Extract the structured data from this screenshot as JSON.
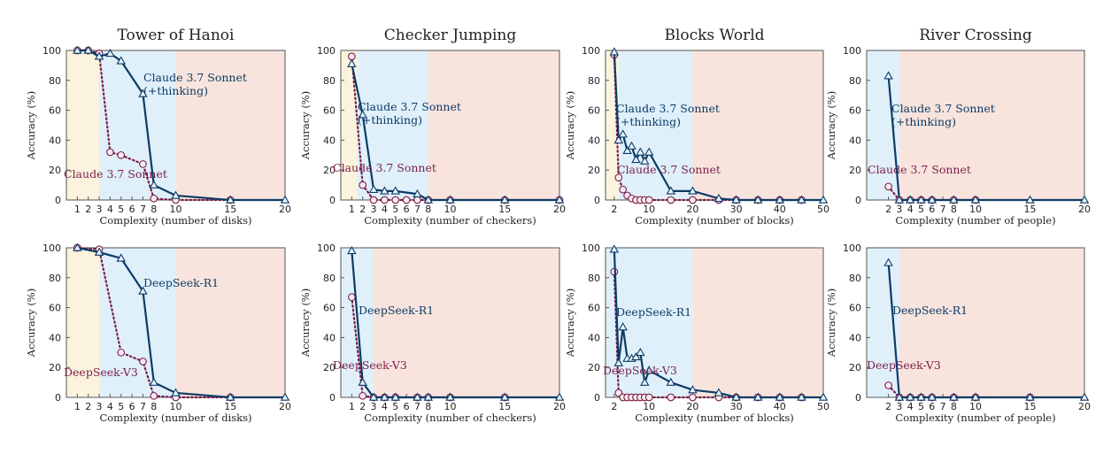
{
  "colors": {
    "thinking": "#0d3b66",
    "nothinking": "#7b1e4b",
    "marker_fill_thinking": "#e6f4fb",
    "marker_fill_nothinking": "#fbecef",
    "zone_low": "#fbf3dd",
    "zone_mid": "#dff0fb",
    "zone_high": "#f8e4dd"
  },
  "chart_data": [
    {
      "type": "line",
      "column": "Tower of Hanoi",
      "row": "top",
      "title": "Tower of Hanoi",
      "xlabel": "Complexity (number of disks)",
      "ylabel": "Accuracy (%)",
      "xlim": [
        0,
        20
      ],
      "ylim": [
        0,
        100
      ],
      "xticks": [
        1,
        2,
        3,
        4,
        5,
        6,
        7,
        8,
        10,
        15,
        20
      ],
      "yticks": [
        0,
        20,
        40,
        60,
        80,
        100
      ],
      "zones": [
        [
          0,
          3
        ],
        [
          3,
          10
        ],
        [
          10,
          20
        ]
      ],
      "series": [
        {
          "name": "Claude 3.7 Sonnet\n(+thinking)",
          "style": "thinking",
          "x": [
            1,
            2,
            3,
            4,
            5,
            7,
            8,
            10,
            15,
            20
          ],
          "y": [
            100,
            100,
            96,
            98,
            93,
            71,
            10,
            3,
            0,
            0
          ]
        },
        {
          "name": "Claude 3.7 Sonnet",
          "style": "nothinking",
          "x": [
            1,
            2,
            3,
            4,
            5,
            7,
            8,
            10,
            15
          ],
          "y": [
            100,
            100,
            98,
            32,
            30,
            24,
            1,
            0,
            0
          ]
        }
      ]
    },
    {
      "type": "line",
      "column": "Checker Jumping",
      "row": "top",
      "title": "Checker Jumping",
      "xlabel": "Complexity (number of checkers)",
      "ylabel": "Accuracy (%)",
      "xlim": [
        0,
        20
      ],
      "ylim": [
        0,
        100
      ],
      "xticks": [
        1,
        2,
        3,
        4,
        5,
        6,
        7,
        8,
        10,
        15,
        20
      ],
      "yticks": [
        0,
        20,
        40,
        60,
        80,
        100
      ],
      "zones": [
        [
          0,
          1.5
        ],
        [
          1.5,
          8
        ],
        [
          8,
          20
        ]
      ],
      "series": [
        {
          "name": "Claude 3.7 Sonnet\n(+thinking)",
          "style": "thinking",
          "x": [
            1,
            2,
            3,
            4,
            5,
            7,
            8,
            10,
            15,
            20
          ],
          "y": [
            91,
            57,
            7,
            6,
            6,
            4,
            0,
            0,
            0,
            0
          ]
        },
        {
          "name": "Claude 3.7 Sonnet",
          "style": "nothinking",
          "x": [
            1,
            2,
            3,
            4,
            5,
            6,
            7,
            8,
            10,
            15,
            20
          ],
          "y": [
            96,
            10,
            0,
            0,
            0,
            0,
            0,
            0,
            0,
            0,
            0
          ]
        }
      ]
    },
    {
      "type": "line",
      "column": "Blocks World",
      "row": "top",
      "title": "Blocks World",
      "xlabel": "Complexity (number of blocks)",
      "ylabel": "Accuracy (%)",
      "xlim": [
        0,
        50
      ],
      "ylim": [
        0,
        100
      ],
      "xticks": [
        2,
        10,
        20,
        30,
        40,
        50
      ],
      "yticks": [
        0,
        20,
        40,
        60,
        80,
        100
      ],
      "zones": [
        [
          0,
          3
        ],
        [
          3,
          20
        ],
        [
          20,
          50
        ]
      ],
      "series": [
        {
          "name": "Claude 3.7 Sonnet\n(+thinking)",
          "style": "thinking",
          "x": [
            2,
            3,
            4,
            5,
            6,
            7,
            8,
            9,
            10,
            15,
            20,
            26,
            30,
            35,
            40,
            45,
            50
          ],
          "y": [
            99,
            40,
            44,
            33,
            36,
            27,
            32,
            26,
            32,
            6,
            6,
            1,
            0,
            0,
            0,
            0,
            0
          ]
        },
        {
          "name": "Claude 3.7 Sonnet",
          "style": "nothinking",
          "x": [
            2,
            3,
            4,
            5,
            6,
            7,
            8,
            9,
            10,
            15,
            20,
            26,
            30,
            35,
            40,
            45
          ],
          "y": [
            97,
            15,
            7,
            3,
            1,
            0,
            0,
            0,
            0,
            0,
            0,
            0,
            0,
            0,
            0,
            0
          ]
        }
      ]
    },
    {
      "type": "line",
      "column": "River Crossing",
      "row": "top",
      "title": "River Crossing",
      "xlabel": "Complexity (number of people)",
      "ylabel": "Accuracy (%)",
      "xlim": [
        0,
        20
      ],
      "ylim": [
        0,
        100
      ],
      "xticks": [
        2,
        3,
        4,
        5,
        6,
        7,
        8,
        10,
        15,
        20
      ],
      "yticks": [
        0,
        20,
        40,
        60,
        80,
        100
      ],
      "zones": [
        [
          0,
          3
        ],
        [
          3,
          20
        ]
      ],
      "series": [
        {
          "name": "Claude 3.7 Sonnet\n(+thinking)",
          "style": "thinking",
          "x": [
            2,
            3,
            4,
            5,
            6,
            8,
            10,
            15,
            20
          ],
          "y": [
            83,
            0,
            0,
            0,
            0,
            0,
            0,
            0,
            0
          ]
        },
        {
          "name": "Claude 3.7 Sonnet",
          "style": "nothinking",
          "x": [
            2,
            3,
            4,
            5,
            6,
            8,
            10
          ],
          "y": [
            9,
            0,
            0,
            0,
            0,
            0,
            0
          ]
        }
      ]
    },
    {
      "type": "line",
      "column": "Tower of Hanoi",
      "row": "bottom",
      "title": "",
      "xlabel": "Complexity (number of disks)",
      "ylabel": "Accuracy (%)",
      "xlim": [
        0,
        20
      ],
      "ylim": [
        0,
        100
      ],
      "xticks": [
        1,
        2,
        3,
        4,
        5,
        6,
        7,
        8,
        10,
        15,
        20
      ],
      "yticks": [
        0,
        20,
        40,
        60,
        80,
        100
      ],
      "zones": [
        [
          0,
          3
        ],
        [
          3,
          10
        ],
        [
          10,
          20
        ]
      ],
      "series": [
        {
          "name": "DeepSeek-R1",
          "style": "thinking",
          "x": [
            1,
            3,
            5,
            7,
            8,
            10,
            15,
            20
          ],
          "y": [
            100,
            97,
            93,
            71,
            10,
            3,
            0,
            0
          ]
        },
        {
          "name": "DeepSeek-V3",
          "style": "nothinking",
          "x": [
            1,
            3,
            5,
            7,
            8,
            10,
            15
          ],
          "y": [
            100,
            99,
            30,
            24,
            1,
            0,
            0
          ]
        }
      ]
    },
    {
      "type": "line",
      "column": "Checker Jumping",
      "row": "bottom",
      "title": "",
      "xlabel": "Complexity (number of checkers)",
      "ylabel": "Accuracy (%)",
      "xlim": [
        0,
        20
      ],
      "ylim": [
        0,
        100
      ],
      "xticks": [
        1,
        2,
        3,
        4,
        5,
        6,
        7,
        8,
        10,
        15,
        20
      ],
      "yticks": [
        0,
        20,
        40,
        60,
        80,
        100
      ],
      "zones": [
        [
          0,
          3
        ],
        [
          3,
          20
        ]
      ],
      "series": [
        {
          "name": "DeepSeek-R1",
          "style": "thinking",
          "x": [
            1,
            2,
            3,
            4,
            5,
            7,
            8,
            10,
            15,
            20
          ],
          "y": [
            98,
            10,
            0,
            0,
            0,
            0,
            0,
            0,
            0,
            0
          ]
        },
        {
          "name": "DeepSeek-V3",
          "style": "nothinking",
          "x": [
            1,
            2,
            3,
            4,
            5,
            7,
            8,
            10,
            15
          ],
          "y": [
            67,
            1,
            0,
            0,
            0,
            0,
            0,
            0,
            0
          ]
        }
      ]
    },
    {
      "type": "line",
      "column": "Blocks World",
      "row": "bottom",
      "title": "",
      "xlabel": "Complexity (number of blocks)",
      "ylabel": "Accuracy (%)",
      "xlim": [
        0,
        50
      ],
      "ylim": [
        0,
        100
      ],
      "xticks": [
        2,
        10,
        20,
        30,
        40,
        50
      ],
      "yticks": [
        0,
        20,
        40,
        60,
        80,
        100
      ],
      "zones": [
        [
          0,
          20
        ],
        [
          20,
          50
        ]
      ],
      "series": [
        {
          "name": "DeepSeek-R1",
          "style": "thinking",
          "x": [
            2,
            3,
            4,
            5,
            6,
            7,
            8,
            9,
            10,
            15,
            20,
            26,
            30,
            35,
            40,
            45,
            50
          ],
          "y": [
            99,
            23,
            47,
            26,
            26,
            27,
            30,
            10,
            18,
            10,
            5,
            3,
            0,
            0,
            0,
            0,
            0
          ]
        },
        {
          "name": "DeepSeek-V3",
          "style": "nothinking",
          "x": [
            2,
            3,
            4,
            5,
            6,
            7,
            8,
            9,
            10,
            15,
            20,
            26,
            30,
            35,
            40,
            45
          ],
          "y": [
            84,
            3,
            0,
            0,
            0,
            0,
            0,
            0,
            0,
            0,
            0,
            0,
            0,
            0,
            0,
            0
          ]
        }
      ]
    },
    {
      "type": "line",
      "column": "River Crossing",
      "row": "bottom",
      "title": "",
      "xlabel": "Complexity (number of people)",
      "ylabel": "Accuracy (%)",
      "xlim": [
        0,
        20
      ],
      "ylim": [
        0,
        100
      ],
      "xticks": [
        2,
        3,
        4,
        5,
        6,
        7,
        8,
        10,
        15,
        20
      ],
      "yticks": [
        0,
        20,
        40,
        60,
        80,
        100
      ],
      "zones": [
        [
          0,
          3
        ],
        [
          3,
          20
        ]
      ],
      "series": [
        {
          "name": "DeepSeek-R1",
          "style": "thinking",
          "x": [
            2,
            3,
            4,
            5,
            6,
            8,
            10,
            15,
            20
          ],
          "y": [
            90,
            0,
            0,
            0,
            0,
            0,
            0,
            0,
            0
          ]
        },
        {
          "name": "DeepSeek-V3",
          "style": "nothinking",
          "x": [
            2,
            3,
            4,
            5,
            6,
            8,
            10,
            15
          ],
          "y": [
            8,
            0,
            0,
            0,
            0,
            0,
            0,
            0
          ]
        }
      ]
    }
  ]
}
